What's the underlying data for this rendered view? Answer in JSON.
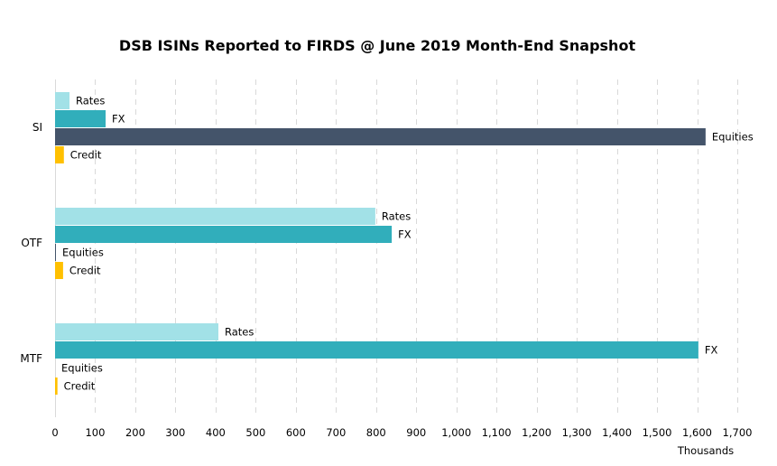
{
  "chart_data": {
    "type": "bar",
    "orientation": "horizontal",
    "title": "DSB ISINs Reported to FIRDS @ June 2019 Month-End Snapshot",
    "xlabel": "Thousands",
    "ylabel": "",
    "xlim": [
      0,
      1700
    ],
    "x_ticks": [
      "0",
      "100",
      "200",
      "300",
      "400",
      "500",
      "600",
      "700",
      "800",
      "900",
      "1,000",
      "1,100",
      "1,200",
      "1,300",
      "1,400",
      "1,500",
      "1,600",
      "1,700"
    ],
    "x_tick_values": [
      0,
      100,
      200,
      300,
      400,
      500,
      600,
      700,
      800,
      900,
      1000,
      1100,
      1200,
      1300,
      1400,
      1500,
      1600,
      1700
    ],
    "grid": "vertical dashed",
    "legend": "none (data labels show series names)",
    "categories": [
      "SI",
      "OTF",
      "MTF"
    ],
    "series": [
      {
        "name": "Rates",
        "color": "#A2E1E7",
        "values": [
          36,
          798,
          407
        ]
      },
      {
        "name": "FX",
        "color": "#31AEBB",
        "values": [
          126,
          839,
          1603
        ]
      },
      {
        "name": "Equities",
        "color": "#44546A",
        "values": [
          1621,
          1,
          0
        ]
      },
      {
        "name": "Credit",
        "color": "#FFC000",
        "values": [
          22,
          20,
          6
        ]
      }
    ]
  }
}
